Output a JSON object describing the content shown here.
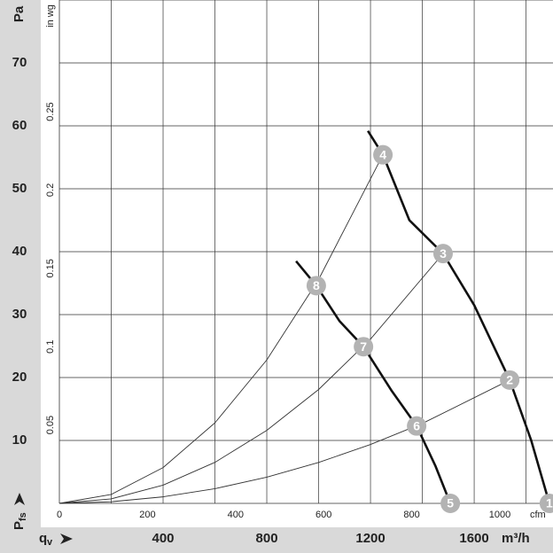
{
  "chart_data": {
    "type": "line",
    "xlim": [
      0,
      1904
    ],
    "ylim": [
      0,
      80
    ],
    "xticks": [
      400,
      800,
      1200,
      1600
    ],
    "x_grid": [
      200,
      400,
      600,
      800,
      1000,
      1200,
      1400,
      1600,
      1800
    ],
    "yticks": [
      10,
      20,
      30,
      40,
      50,
      60,
      70
    ],
    "y_grid": [
      10,
      20,
      30,
      40,
      50,
      60,
      70,
      80
    ],
    "x_unit": "m³/h",
    "y_unit": "Pa",
    "x_label": "q",
    "x_label_sub": "v",
    "y_label": "P",
    "y_label_sub": "fs",
    "x2lim": [
      0,
      1120.7
    ],
    "x2ticks": [
      0,
      200,
      400,
      600,
      800,
      1000
    ],
    "x2_unit": "cfm",
    "y2lim": [
      0,
      0.3213
    ],
    "y2ticks": [
      0.05,
      0.1,
      0.15,
      0.2,
      0.25
    ],
    "y2_unit": "in wg",
    "series": [
      {
        "style": "thick",
        "color": "#111111",
        "x": [
          1190,
          1248,
          1350,
          1480,
          1600,
          1737,
          1820,
          1890
        ],
        "values": [
          59.2,
          55.4,
          45,
          39.7,
          31.5,
          19.6,
          10,
          0
        ]
      },
      {
        "style": "thick",
        "color": "#111111",
        "x": [
          913,
          991,
          1080,
          1173,
          1280,
          1378,
          1450,
          1508
        ],
        "values": [
          38.5,
          34.6,
          29,
          24.9,
          18,
          12.3,
          6,
          0
        ]
      },
      {
        "style": "thin",
        "color": "#333333",
        "x": [
          0,
          200,
          400,
          600,
          800,
          1000,
          1248
        ],
        "values": [
          0,
          1.42,
          5.69,
          12.8,
          22.8,
          35.6,
          55.4
        ]
      },
      {
        "style": "thin",
        "color": "#333333",
        "x": [
          0,
          200,
          400,
          600,
          800,
          1000,
          1200,
          1480
        ],
        "values": [
          0,
          0.72,
          2.9,
          6.52,
          11.6,
          18.1,
          26.1,
          39.7
        ]
      },
      {
        "style": "thin",
        "color": "#333333",
        "x": [
          0,
          200,
          400,
          600,
          800,
          1000,
          1200,
          1400,
          1737
        ],
        "values": [
          0,
          0.26,
          1.04,
          2.34,
          4.16,
          6.5,
          9.36,
          12.7,
          19.6
        ]
      }
    ],
    "points": [
      {
        "label": "1",
        "x": 1890,
        "y": 0
      },
      {
        "label": "2",
        "x": 1737,
        "y": 19.6
      },
      {
        "label": "3",
        "x": 1480,
        "y": 39.7
      },
      {
        "label": "4",
        "x": 1248,
        "y": 55.4
      },
      {
        "label": "5",
        "x": 1508,
        "y": 0
      },
      {
        "label": "6",
        "x": 1378,
        "y": 12.3
      },
      {
        "label": "7",
        "x": 1173,
        "y": 24.9
      },
      {
        "label": "8",
        "x": 991,
        "y": 34.6
      }
    ],
    "point_color": "#b3b3b3"
  }
}
